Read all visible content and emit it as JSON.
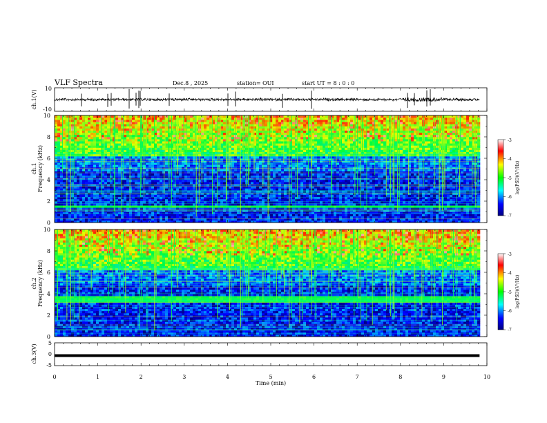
{
  "header": {
    "title": "VLF Spectra",
    "date": "Dec.8 , 2025",
    "station": "station= OUI",
    "start": "start UT = 8 : 0 : 0"
  },
  "chart_data": [
    {
      "type": "line",
      "name": "ch1-waveform",
      "ylabel": "ch.1(V)",
      "ylim": [
        -10,
        10
      ],
      "yticks": [
        "10",
        "-10"
      ],
      "xlim": [
        0,
        10
      ],
      "data_end_min": 9.83
    },
    {
      "type": "heatmap",
      "name": "ch1-spectrogram",
      "ylabel_top": "ch.1",
      "ylabel": "Frequency (kHz)",
      "ylim": [
        0,
        10
      ],
      "yticks": [
        "0",
        "2",
        "4",
        "6",
        "8",
        "10"
      ],
      "xlim": [
        0,
        10
      ],
      "data_end_min": 9.83,
      "colorbar": {
        "label": "log(PSD)(V²/Hz)",
        "range": [
          -7,
          -3
        ],
        "ticks": [
          "-3",
          "-4",
          "-5",
          "-6",
          "-7"
        ]
      }
    },
    {
      "type": "heatmap",
      "name": "ch2-spectrogram",
      "ylabel_top": "ch.2",
      "ylabel": "Frequency (kHz)",
      "ylim": [
        0,
        10
      ],
      "yticks": [
        "0",
        "2",
        "4",
        "6",
        "8",
        "10"
      ],
      "xlim": [
        0,
        10
      ],
      "data_end_min": 9.83,
      "colorbar": {
        "label": "log(PSD)(V²/Hz)",
        "range": [
          -7,
          -3
        ],
        "ticks": [
          "-3",
          "-4",
          "-5",
          "-6",
          "-7"
        ]
      }
    },
    {
      "type": "line",
      "name": "ch3-voltage",
      "ylabel": "ch.3(V)",
      "ylim": [
        -5,
        5
      ],
      "yticks": [
        "5",
        "0",
        "-5"
      ],
      "xlim": [
        0,
        10
      ],
      "constant_value": -0.6,
      "data_end_min": 9.83,
      "xlabel": "Time (min)",
      "xticks": [
        "0",
        "1",
        "2",
        "3",
        "4",
        "5",
        "6",
        "7",
        "8",
        "9",
        "10"
      ]
    }
  ]
}
